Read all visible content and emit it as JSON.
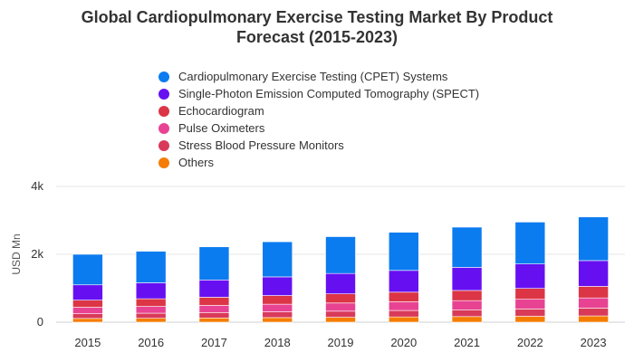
{
  "chart_data": {
    "type": "bar",
    "stacked": true,
    "title_lines": [
      "Global Cardiopulmonary Exercise Testing Market By Product",
      "Forecast (2015-2023)"
    ],
    "ylabel": "USD Mn",
    "xlabel": "",
    "ylim": [
      0,
      4000
    ],
    "y_ticks": [
      {
        "value": 0,
        "label": "0"
      },
      {
        "value": 2000,
        "label": "2k"
      },
      {
        "value": 4000,
        "label": "4k"
      }
    ],
    "grid": true,
    "legend_position": "top",
    "categories": [
      "2015",
      "2016",
      "2017",
      "2018",
      "2019",
      "2020",
      "2021",
      "2022",
      "2023"
    ],
    "series": [
      {
        "name": "Others",
        "color": "#f57c00",
        "values": [
          110,
          115,
          125,
          135,
          145,
          155,
          165,
          175,
          185
        ]
      },
      {
        "name": "Stress Blood Pressure Monitors",
        "color": "#d93a5a",
        "values": [
          140,
          150,
          160,
          170,
          180,
          190,
          200,
          215,
          230
        ]
      },
      {
        "name": "Pulse Oximeters",
        "color": "#e84393",
        "values": [
          190,
          200,
          210,
          225,
          240,
          255,
          270,
          285,
          300
        ]
      },
      {
        "name": "Echocardiogram",
        "color": "#dc3545",
        "values": [
          210,
          225,
          240,
          255,
          270,
          285,
          300,
          320,
          340
        ]
      },
      {
        "name": "Single-Photon Emission Computed Tomography (SPECT)",
        "color": "#6610f2",
        "values": [
          450,
          470,
          510,
          550,
          600,
          640,
          680,
          720,
          760
        ]
      },
      {
        "name": "Cardiopulmonary Exercise Testing (CPET) Systems",
        "color": "#0b7bf0",
        "values": [
          900,
          930,
          975,
          1035,
          1085,
          1125,
          1185,
          1235,
          1285
        ]
      }
    ]
  }
}
